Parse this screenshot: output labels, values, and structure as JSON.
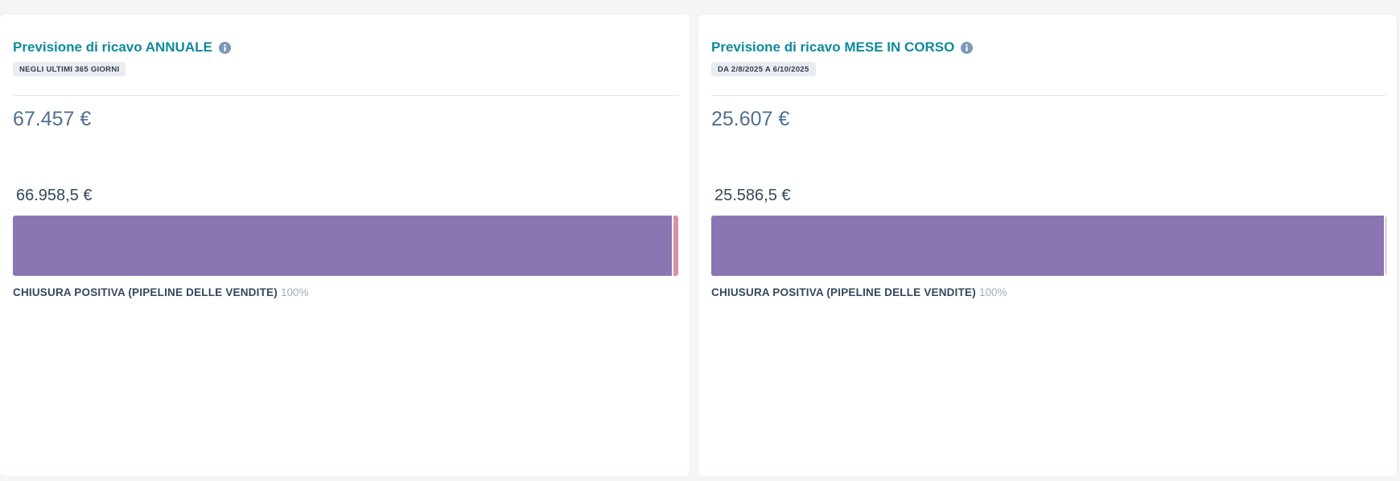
{
  "colors": {
    "title": "#0e8a9c",
    "bar_main": "#8a76b3",
    "bar_extra": "#d891a3",
    "info_icon": "#7c98b6"
  },
  "cards": [
    {
      "title": "Previsione di ricavo ANNUALE",
      "date_pill": "NEGLI ULTIMI 365 GIORNI",
      "total": "67.457 €",
      "bar_value": "66.958,5 €",
      "bar_fraction": 0.9926,
      "legend_label": "CHIUSURA POSITIVA (PIPELINE DELLE VENDITE)",
      "legend_percent": "100%",
      "info_icon": "info-icon"
    },
    {
      "title": "Previsione di ricavo MESE IN CORSO",
      "date_pill": "DA 2/8/2025 A 6/10/2025",
      "total": "25.607 €",
      "bar_value": "25.586,5 €",
      "bar_fraction": 0.9992,
      "legend_label": "CHIUSURA POSITIVA (PIPELINE DELLE VENDITE)",
      "legend_percent": "100%",
      "info_icon": "info-icon"
    }
  ]
}
